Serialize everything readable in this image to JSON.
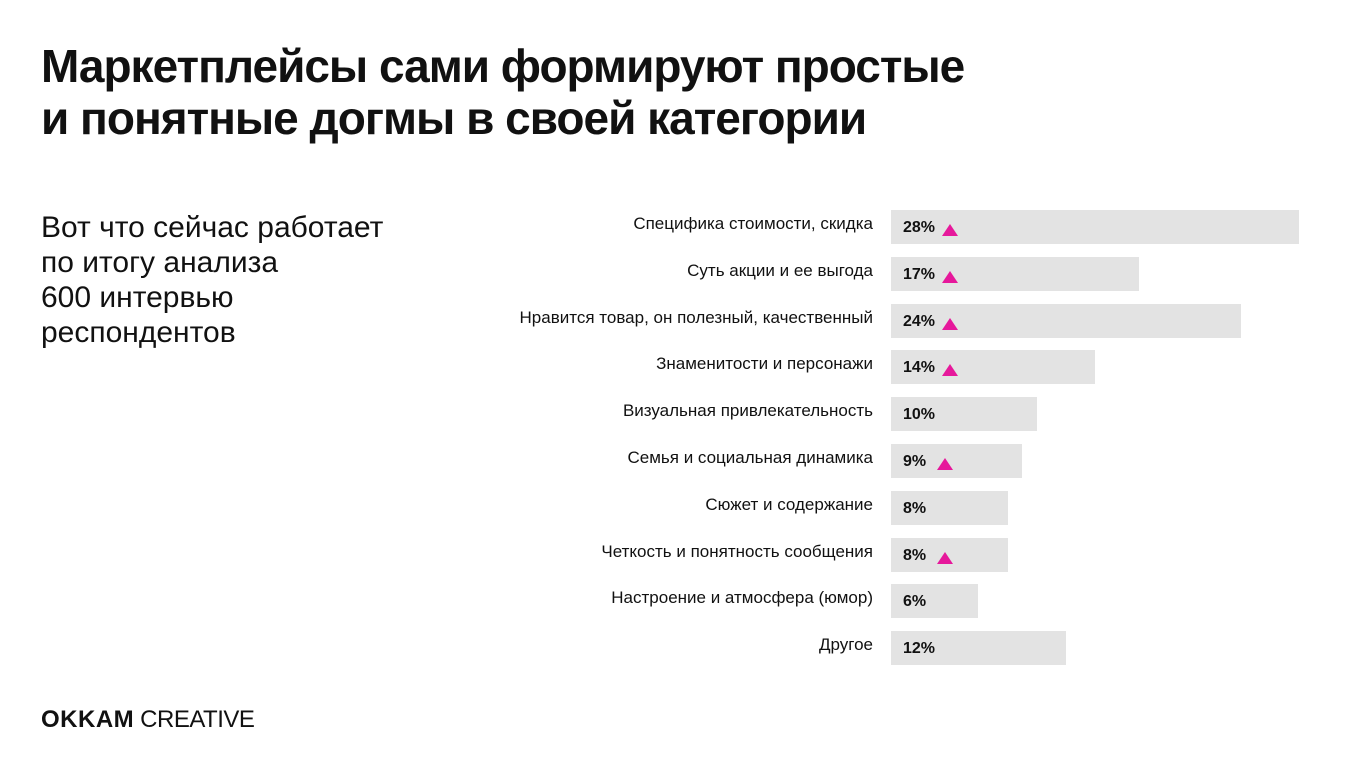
{
  "title_lines": [
    "Маркетплейсы сами формируют простые",
    "и понятные догмы в своей категории"
  ],
  "subtitle_lines": [
    "Вот что сейчас работает",
    "по итогу анализа",
    "600 интервью",
    "респондентов"
  ],
  "logo": {
    "brand": "OKKAM",
    "suffix": "CREATIVE"
  },
  "colors": {
    "bar": "#e3e3e3",
    "marker": "#e6189b",
    "text": "#111111"
  },
  "chart_data": {
    "type": "bar",
    "orientation": "horizontal",
    "unit": "%",
    "categories": [
      "Специфика стоимости, скидка",
      "Суть акции и ее выгода",
      "Нравится товар, он полезный, качественный",
      "Знаменитости и персонажи",
      "Визуальная привлекательность",
      "Семья и социальная динамика",
      "Сюжет и содержание",
      "Четкость и понятность сообщения",
      "Настроение и атмосфера (юмор)",
      "Другое"
    ],
    "values": [
      28,
      17,
      24,
      14,
      10,
      9,
      8,
      8,
      6,
      12
    ],
    "value_labels": [
      "28%",
      "17%",
      "24%",
      "14%",
      "10%",
      "9%",
      "8%",
      "8%",
      "6%",
      "12%"
    ],
    "up_markers": [
      true,
      true,
      true,
      true,
      false,
      true,
      false,
      true,
      false,
      false
    ],
    "xlim": [
      0,
      28
    ]
  }
}
